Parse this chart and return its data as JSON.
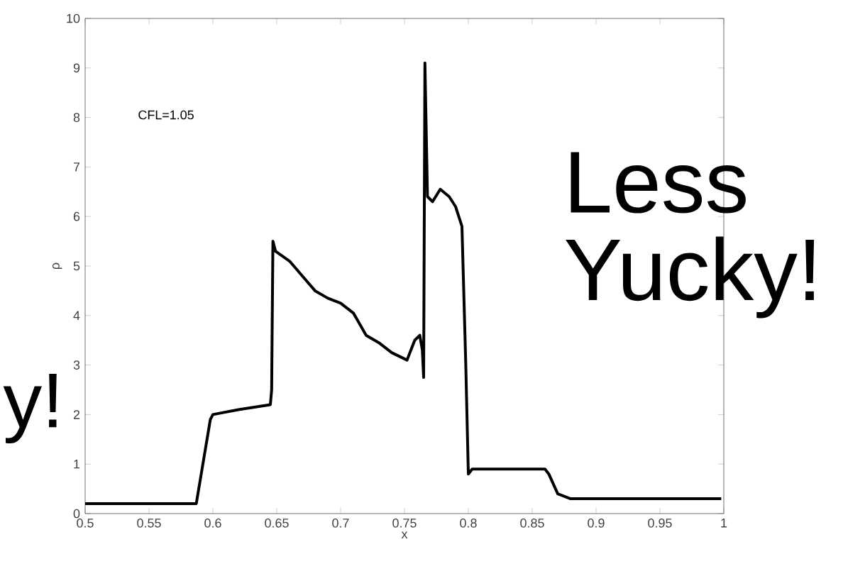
{
  "chart_data": {
    "type": "line",
    "xlabel": "x",
    "ylabel": "ρ",
    "annotations": [
      "CFL=1.05",
      "Less Yucky!",
      "y!"
    ],
    "x": [
      0.5,
      0.587,
      0.598,
      0.6,
      0.62,
      0.645,
      0.646,
      0.647,
      0.649,
      0.66,
      0.67,
      0.68,
      0.69,
      0.7,
      0.71,
      0.72,
      0.73,
      0.74,
      0.752,
      0.758,
      0.762,
      0.764,
      0.765,
      0.766,
      0.768,
      0.772,
      0.778,
      0.785,
      0.79,
      0.795,
      0.798,
      0.8,
      0.803,
      0.86,
      0.863,
      0.87,
      0.88,
      0.998
    ],
    "series": [
      {
        "color": "#000000",
        "values": [
          0.2,
          0.2,
          1.9,
          2.0,
          2.1,
          2.2,
          2.5,
          5.5,
          5.3,
          5.1,
          4.8,
          4.5,
          4.35,
          4.25,
          4.05,
          3.6,
          3.45,
          3.25,
          3.1,
          3.5,
          3.6,
          3.3,
          2.75,
          9.1,
          6.4,
          6.3,
          6.55,
          6.4,
          6.2,
          5.8,
          3.0,
          0.8,
          0.9,
          0.9,
          0.8,
          0.4,
          0.3,
          0.3
        ]
      }
    ],
    "xlim": [
      0.5,
      1
    ],
    "ylim": [
      0,
      10
    ],
    "xticks": [
      0.5,
      0.55,
      0.6,
      0.65,
      0.7,
      0.75,
      0.8,
      0.85,
      0.9,
      0.95,
      1
    ],
    "yticks": [
      0,
      1,
      2,
      3,
      4,
      5,
      6,
      7,
      8,
      9,
      10
    ],
    "grid": false,
    "marker": "none",
    "line_style": "solid"
  }
}
